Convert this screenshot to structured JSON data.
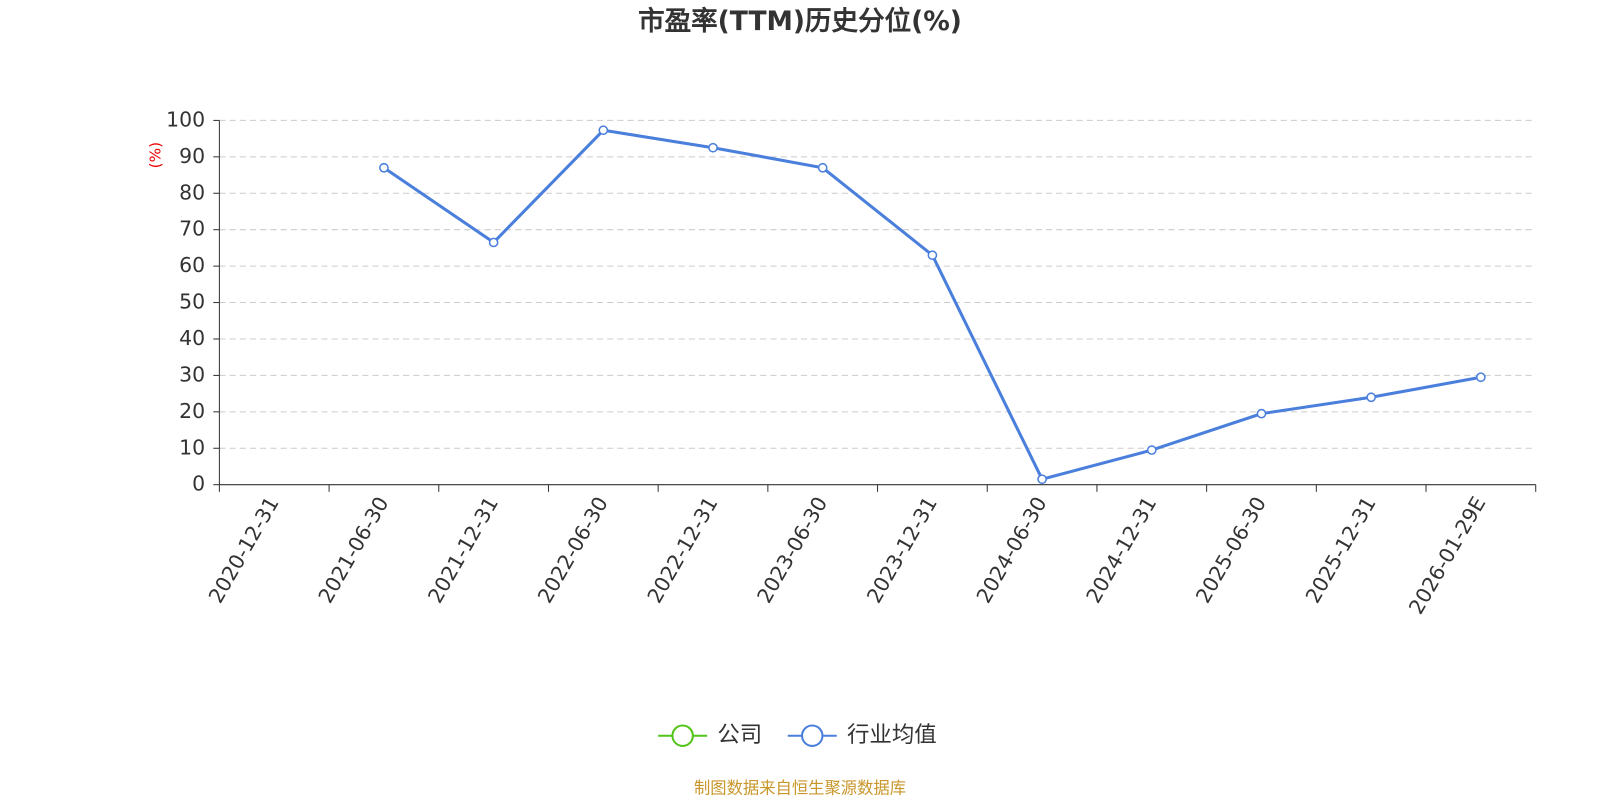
{
  "chart_data": {
    "type": "line",
    "title": "市盈率(TTM)历史分位(%)",
    "y_label": "(%)",
    "source": "制图数据来自恒生聚源数据库",
    "categories": [
      "2020-12-31",
      "2021-06-30",
      "2021-12-31",
      "2022-06-30",
      "2022-12-31",
      "2023-06-30",
      "2023-12-31",
      "2024-06-30",
      "2024-12-31",
      "2025-06-30",
      "2025-12-31",
      "2026-01-29E"
    ],
    "series": [
      {
        "name": "公司",
        "color": "#52c41a",
        "values": [
          null,
          null,
          null,
          null,
          null,
          null,
          null,
          null,
          null,
          null,
          null,
          null
        ]
      },
      {
        "name": "行业均值",
        "color": "#4a7fdc",
        "values": [
          null,
          87,
          66.5,
          97.3,
          92.5,
          87,
          63,
          1.5,
          9.5,
          19.5,
          24,
          29.5
        ]
      }
    ],
    "ylim": [
      0,
      100
    ],
    "yticks": [
      0,
      10,
      20,
      30,
      40,
      50,
      60,
      70,
      80,
      90,
      100
    ],
    "grid": true
  }
}
